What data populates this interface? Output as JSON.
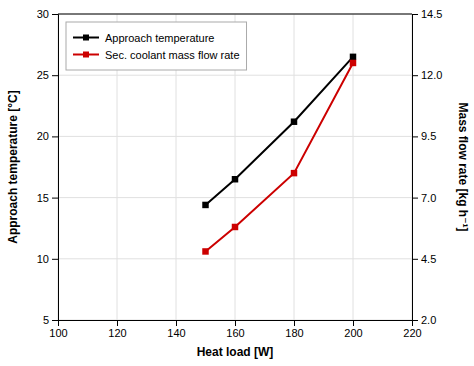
{
  "chart_data": {
    "type": "line",
    "xlabel": "Heat load [W]",
    "ylabel": "Approach temperature [°C]",
    "y2label": "Mass flow rate [kg h⁻¹]",
    "x": [
      150,
      160,
      180,
      200
    ],
    "series": [
      {
        "name": "Approach temperature",
        "color": "#000000",
        "marker": "square",
        "values": [
          14.4,
          16.5,
          21.2,
          26.5
        ]
      },
      {
        "name": "Sec. coolant mass flow rate",
        "color": "#cc0000",
        "marker": "square",
        "axis": "y2",
        "values": [
          4.8,
          5.8,
          8.0,
          12.5
        ]
      }
    ],
    "xlim": [
      100,
      220
    ],
    "xticks": [
      100,
      120,
      140,
      160,
      180,
      200,
      220
    ],
    "ylim": [
      5,
      30
    ],
    "yticks": [
      5,
      10,
      15,
      20,
      25,
      30
    ],
    "y2lim": [
      2.0,
      14.5
    ],
    "y2ticks": [
      {
        "value": 2.0,
        "label": "2.0"
      },
      4.5,
      {
        "value": 7.0,
        "label": "7.0"
      },
      9.5,
      {
        "value": 12.0,
        "label": "12.0"
      },
      14.5
    ],
    "grid": true,
    "legend": "upper left"
  }
}
